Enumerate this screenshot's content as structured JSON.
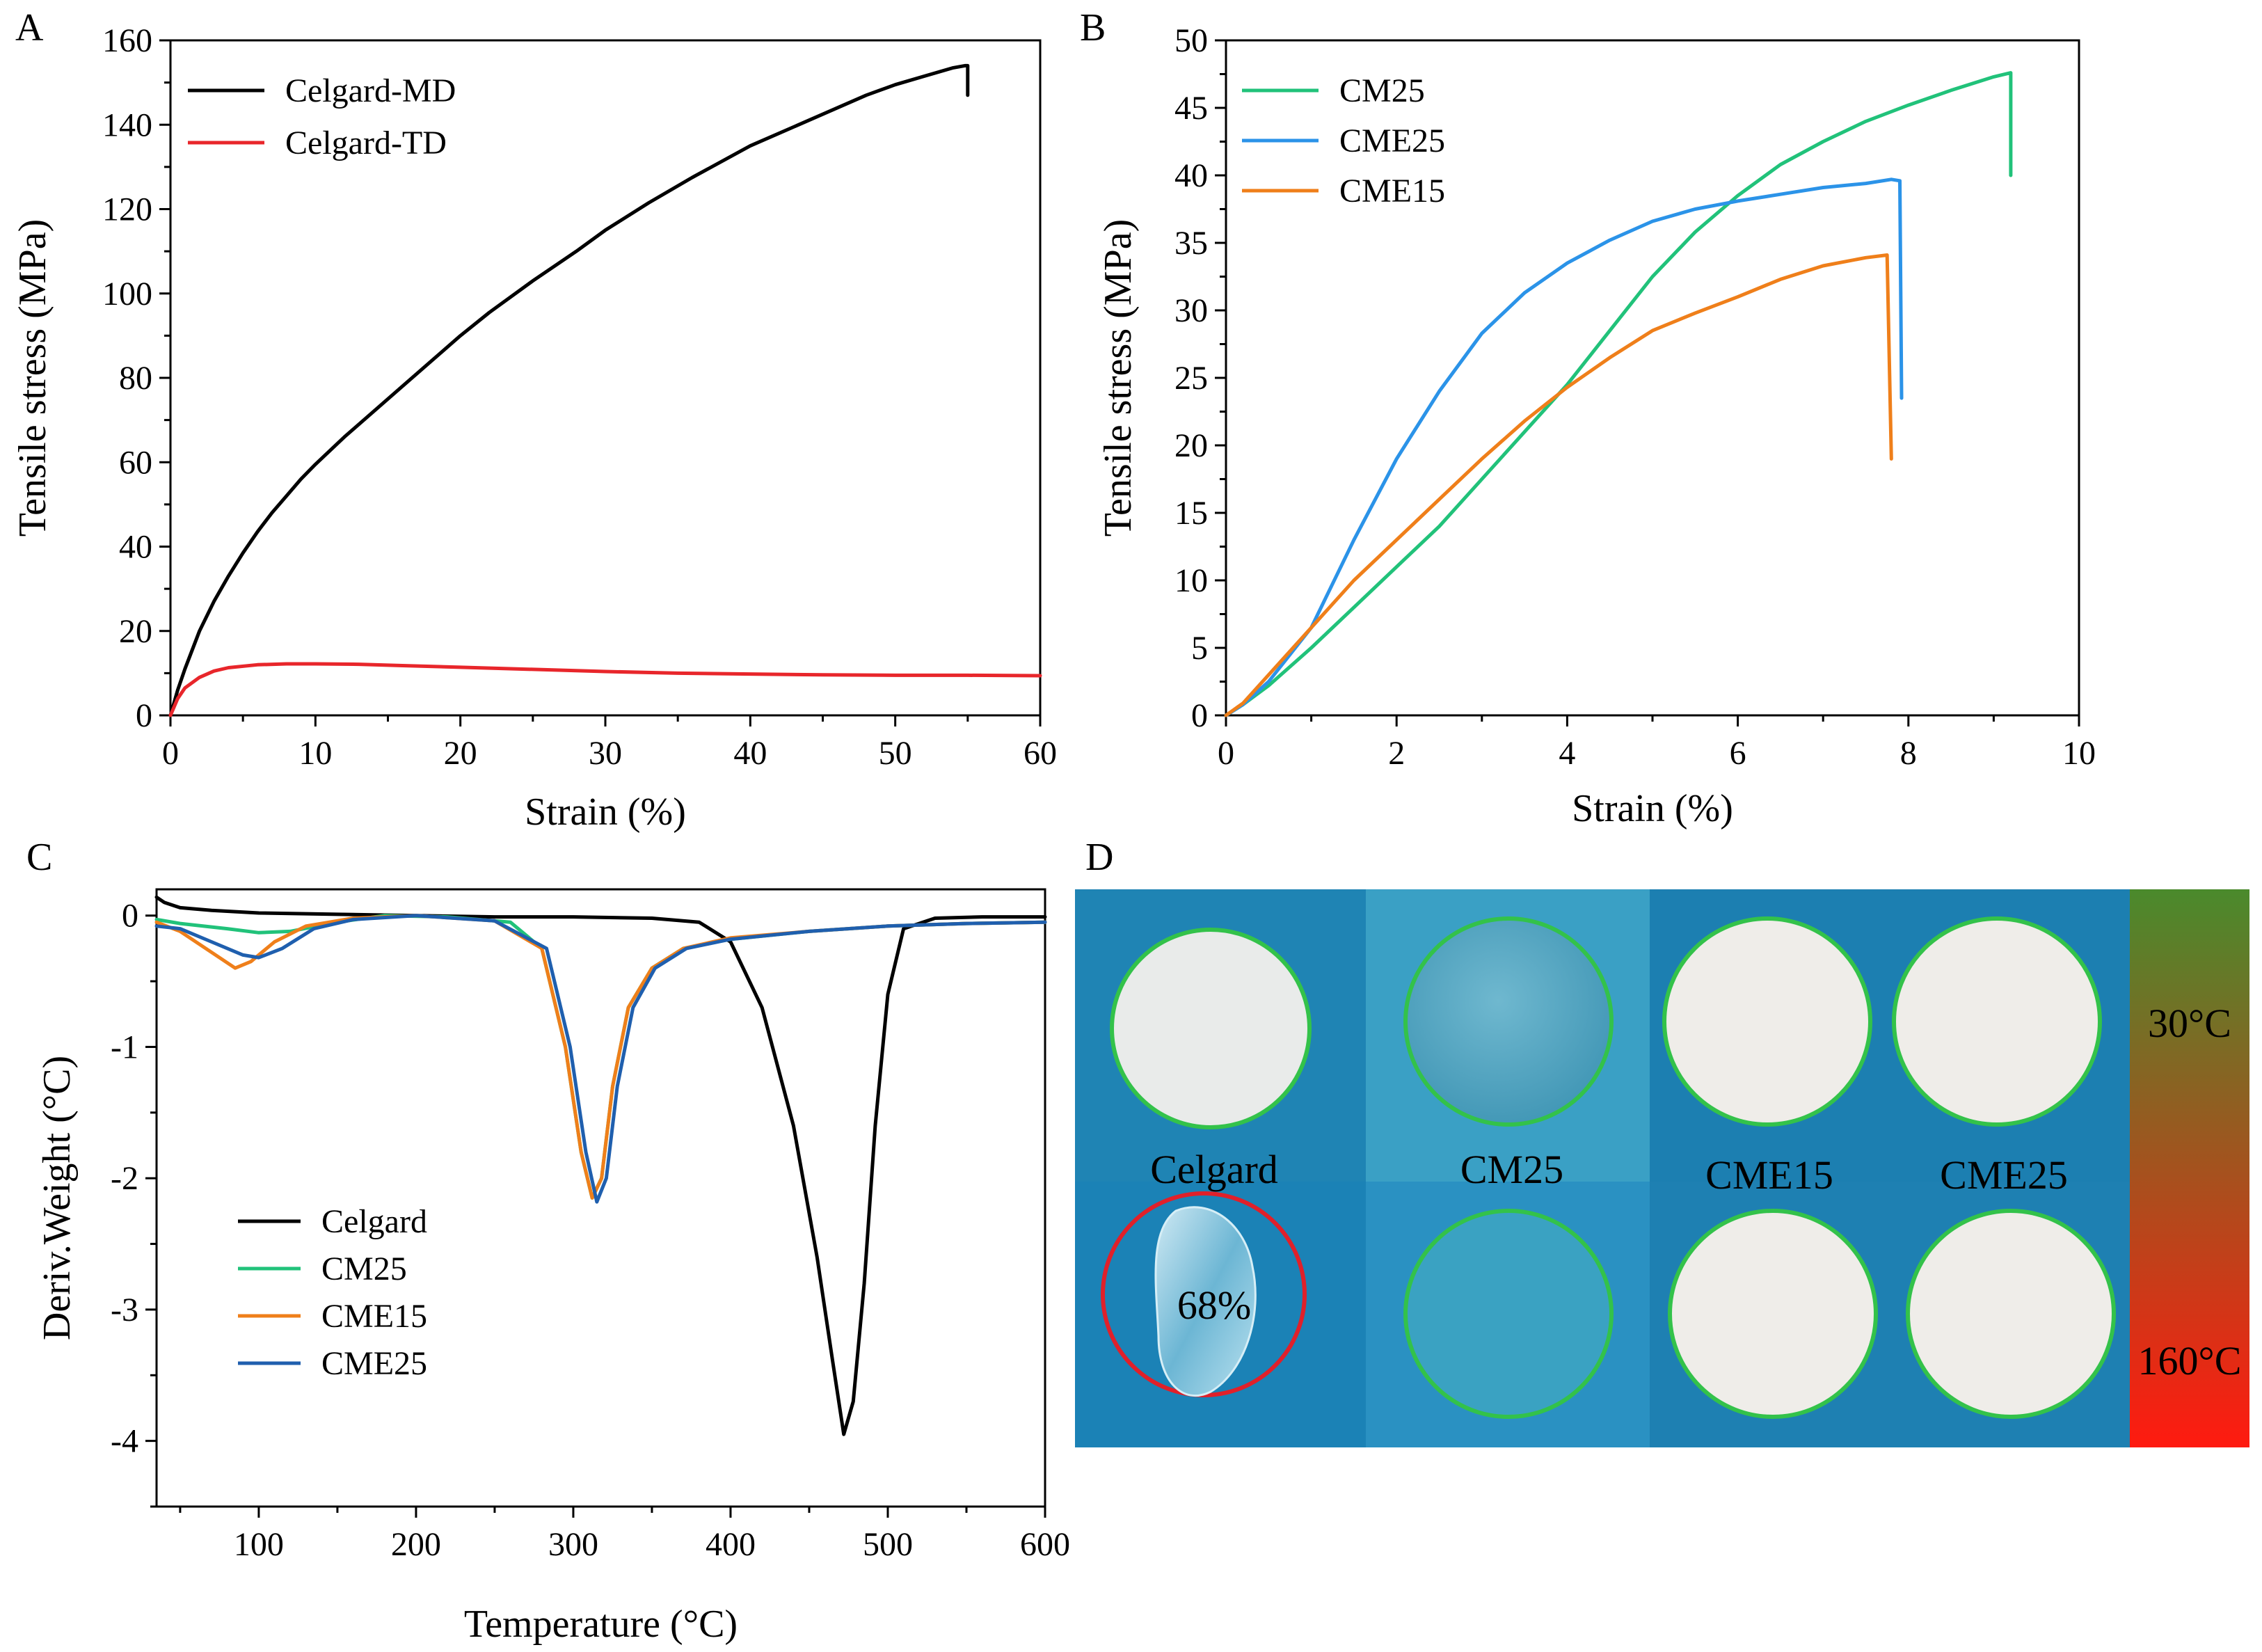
{
  "figure": {
    "panels": {
      "A": "A",
      "B": "B",
      "C": "C",
      "D": "D"
    },
    "photo": {
      "temp_top": "30°C",
      "temp_bottom": "160°C",
      "labels": [
        "Celgard",
        "CM25",
        "CME15",
        "CME25"
      ],
      "shrinkage": "68%",
      "colors": {
        "bg": "#1d84b6",
        "bg_alt": "#2b8fbf",
        "membrane": "#f1efec",
        "ring_ok": "#2ecc40",
        "ring_fail": "#e0202a",
        "gradient_top": "#4a8a2c",
        "gradient_bottom": "#ff1a10"
      }
    }
  },
  "chart_data": [
    {
      "id": "A",
      "type": "line",
      "title": "",
      "xlabel": "Strain (%)",
      "ylabel": "Tensile stress (MPa)",
      "xlim": [
        0,
        60
      ],
      "ylim": [
        0,
        160
      ],
      "xticks": [
        0,
        10,
        20,
        30,
        40,
        50,
        60
      ],
      "yticks": [
        0,
        20,
        40,
        60,
        80,
        100,
        120,
        140,
        160
      ],
      "legend_position": "top-left",
      "series": [
        {
          "name": "Celgard-MD",
          "color": "#000000",
          "x": [
            0,
            0.5,
            1,
            2,
            3,
            4,
            5,
            6,
            7,
            8,
            9,
            10,
            12,
            14,
            16,
            18,
            20,
            22,
            25,
            28,
            30,
            33,
            36,
            40,
            44,
            48,
            50,
            52,
            54,
            54.8,
            55,
            55
          ],
          "y": [
            0,
            6,
            11,
            20,
            27,
            33,
            38.5,
            43.5,
            48,
            52,
            56,
            59.5,
            66,
            72,
            78,
            84,
            90,
            95.5,
            103,
            110,
            115,
            121.5,
            127.5,
            135,
            141,
            147,
            149.5,
            151.5,
            153.5,
            154,
            154,
            147
          ]
        },
        {
          "name": "Celgard-TD",
          "color": "#e8262b",
          "x": [
            0,
            0.5,
            1,
            2,
            3,
            4,
            6,
            8,
            10,
            13,
            16,
            20,
            25,
            30,
            35,
            40,
            45,
            50,
            55,
            60
          ],
          "y": [
            0,
            4,
            6.5,
            9,
            10.5,
            11.3,
            12,
            12.2,
            12.2,
            12.1,
            11.8,
            11.4,
            10.9,
            10.4,
            10,
            9.8,
            9.6,
            9.5,
            9.5,
            9.4
          ]
        }
      ]
    },
    {
      "id": "B",
      "type": "line",
      "title": "",
      "xlabel": "Strain (%)",
      "ylabel": "Tensile stress (MPa)",
      "xlim": [
        0,
        10
      ],
      "ylim": [
        0,
        50
      ],
      "xticks": [
        0,
        2,
        4,
        6,
        8,
        10
      ],
      "yticks": [
        0,
        5,
        10,
        15,
        20,
        25,
        30,
        35,
        40,
        45,
        50
      ],
      "legend_position": "top-left",
      "series": [
        {
          "name": "CM25",
          "color": "#21c27a",
          "x": [
            0,
            0.2,
            0.5,
            1,
            1.5,
            2,
            2.5,
            3,
            3.5,
            4,
            4.5,
            5,
            5.5,
            6,
            6.5,
            7,
            7.5,
            8,
            8.5,
            9,
            9.2,
            9.2
          ],
          "y": [
            0,
            0.8,
            2.2,
            5,
            8,
            11,
            14,
            17.5,
            21,
            24.5,
            28.5,
            32.5,
            35.8,
            38.5,
            40.8,
            42.5,
            44,
            45.2,
            46.3,
            47.3,
            47.6,
            40
          ]
        },
        {
          "name": "CME25",
          "color": "#2b93e8",
          "x": [
            0,
            0.2,
            0.5,
            1,
            1.5,
            2,
            2.5,
            3,
            3.5,
            4,
            4.5,
            5,
            5.5,
            6,
            6.5,
            7,
            7.5,
            7.8,
            7.9,
            7.92
          ],
          "y": [
            0,
            0.8,
            2.5,
            6.5,
            13,
            19,
            24,
            28.3,
            31.3,
            33.5,
            35.2,
            36.6,
            37.5,
            38.1,
            38.6,
            39.1,
            39.4,
            39.7,
            39.6,
            23.5
          ]
        },
        {
          "name": "CME15",
          "color": "#ef7f1a",
          "x": [
            0,
            0.2,
            0.5,
            1,
            1.5,
            2,
            2.5,
            3,
            3.5,
            4,
            4.5,
            5,
            5.5,
            6,
            6.5,
            7,
            7.5,
            7.75,
            7.8
          ],
          "y": [
            0,
            0.9,
            3,
            6.5,
            10,
            13,
            16,
            19,
            21.8,
            24.3,
            26.5,
            28.5,
            29.8,
            31,
            32.3,
            33.3,
            33.9,
            34.1,
            19
          ]
        }
      ]
    },
    {
      "id": "C",
      "type": "line",
      "title": "",
      "xlabel": "Temperature (°C)",
      "ylabel": "Deriv.Weight (°C)",
      "xlim": [
        35,
        600
      ],
      "ylim": [
        -4.5,
        0.2
      ],
      "xticks": [
        100,
        200,
        300,
        400,
        500,
        600
      ],
      "yticks": [
        0,
        -1,
        -2,
        -3,
        -4
      ],
      "legend_position": "bottom-left",
      "series": [
        {
          "name": "Celgard",
          "color": "#000000",
          "x": [
            35,
            40,
            50,
            70,
            100,
            150,
            200,
            250,
            300,
            350,
            380,
            400,
            420,
            440,
            455,
            465,
            472,
            478,
            485,
            492,
            500,
            510,
            530,
            560,
            600
          ],
          "y": [
            0.14,
            0.1,
            0.06,
            0.04,
            0.02,
            0.01,
            0.0,
            -0.01,
            -0.01,
            -0.02,
            -0.05,
            -0.2,
            -0.7,
            -1.6,
            -2.6,
            -3.4,
            -3.95,
            -3.7,
            -2.8,
            -1.6,
            -0.6,
            -0.1,
            -0.02,
            -0.01,
            -0.01
          ]
        },
        {
          "name": "CM25",
          "color": "#21c27a",
          "x": [
            35,
            50,
            80,
            100,
            120,
            150,
            180,
            220,
            260,
            280,
            295,
            305,
            312,
            318,
            325,
            335,
            350,
            370,
            400,
            450,
            500,
            550,
            600
          ],
          "y": [
            -0.03,
            -0.06,
            -0.1,
            -0.13,
            -0.12,
            -0.05,
            0.0,
            -0.01,
            -0.05,
            -0.25,
            -1.0,
            -1.8,
            -2.15,
            -2.0,
            -1.3,
            -0.7,
            -0.4,
            -0.25,
            -0.18,
            -0.12,
            -0.08,
            -0.06,
            -0.05
          ]
        },
        {
          "name": "CME15",
          "color": "#ef7f1a",
          "x": [
            35,
            50,
            70,
            85,
            95,
            110,
            130,
            160,
            200,
            250,
            280,
            295,
            305,
            312,
            318,
            325,
            335,
            350,
            370,
            400,
            450,
            500,
            550,
            600
          ],
          "y": [
            -0.05,
            -0.12,
            -0.28,
            -0.4,
            -0.35,
            -0.2,
            -0.08,
            -0.02,
            0.0,
            -0.04,
            -0.25,
            -1.0,
            -1.8,
            -2.15,
            -2.0,
            -1.3,
            -0.7,
            -0.4,
            -0.25,
            -0.17,
            -0.12,
            -0.08,
            -0.06,
            -0.05
          ]
        },
        {
          "name": "CME25",
          "color": "#1f5fae",
          "x": [
            35,
            50,
            70,
            90,
            100,
            115,
            135,
            160,
            200,
            250,
            283,
            298,
            308,
            315,
            321,
            328,
            338,
            352,
            372,
            400,
            450,
            500,
            550,
            600
          ],
          "y": [
            -0.08,
            -0.1,
            -0.2,
            -0.3,
            -0.32,
            -0.25,
            -0.1,
            -0.03,
            0.0,
            -0.04,
            -0.25,
            -1.0,
            -1.8,
            -2.18,
            -2.0,
            -1.3,
            -0.7,
            -0.4,
            -0.25,
            -0.18,
            -0.12,
            -0.08,
            -0.06,
            -0.05
          ]
        }
      ]
    }
  ]
}
